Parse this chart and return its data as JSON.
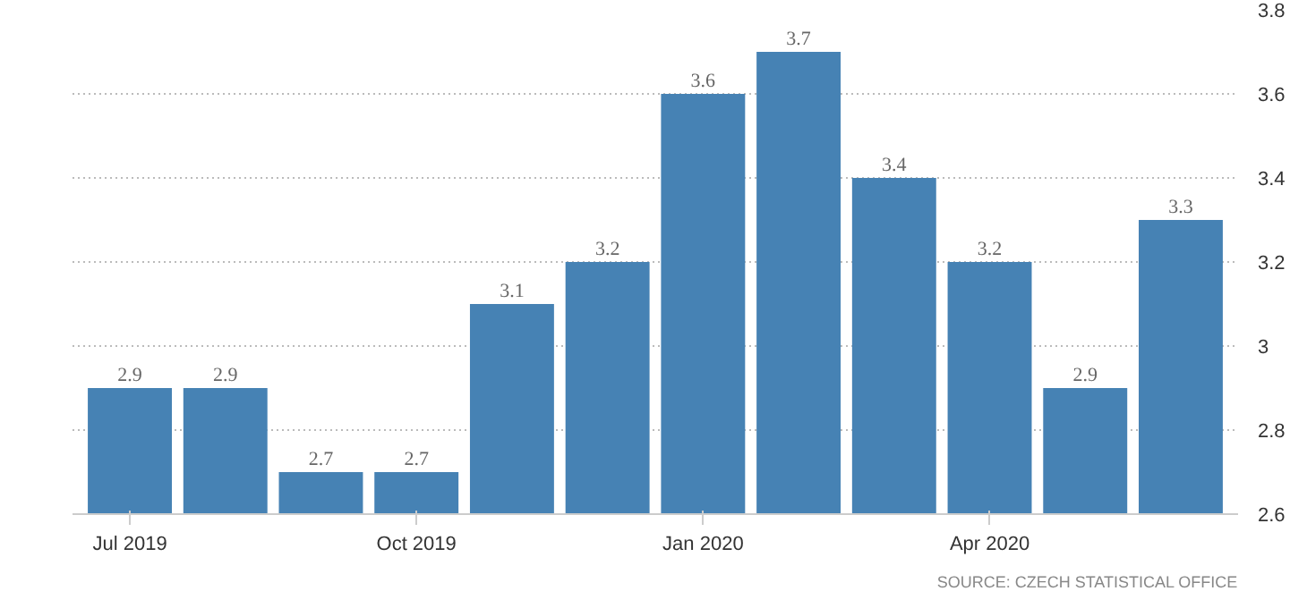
{
  "chart_data": {
    "type": "bar",
    "categories": [
      "Jul 2019",
      null,
      null,
      "Oct 2019",
      null,
      null,
      "Jan 2020",
      null,
      null,
      "Apr 2020",
      null,
      null
    ],
    "values": [
      2.9,
      2.9,
      2.7,
      2.7,
      3.1,
      3.2,
      3.6,
      3.7,
      3.4,
      3.2,
      2.9,
      3.3
    ],
    "color": "#4682b4",
    "ylim": [
      2.6,
      3.8
    ],
    "yticks": [
      2.6,
      2.8,
      3,
      3.2,
      3.4,
      3.6,
      3.8
    ],
    "grid": "y",
    "data_labels": true,
    "annotations": [
      "SOURCE: CZECH STATISTICAL OFFICE"
    ]
  }
}
